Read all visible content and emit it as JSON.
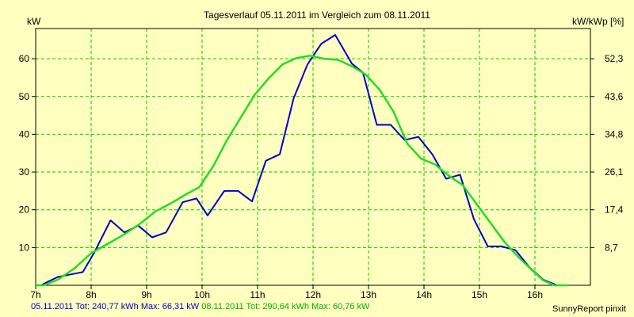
{
  "chart_data": {
    "type": "line",
    "title": "Tagesverlauf 05.11.2011 im Vergleich zum 08.11.2011",
    "ylabel": "kW",
    "ylabel_right": "kW/kWp [%]",
    "ylim": [
      0,
      68
    ],
    "y_ticks": [
      10,
      20,
      30,
      40,
      50,
      60
    ],
    "y_right_ticks": [
      "8,7",
      "17,4",
      "26,1",
      "34,8",
      "43,6",
      "52,3"
    ],
    "xlim": [
      7,
      17
    ],
    "x_ticks": [
      {
        "v": 7,
        "label": "7h"
      },
      {
        "v": 8,
        "label": "8h"
      },
      {
        "v": 9,
        "label": "9h"
      },
      {
        "v": 10,
        "label": "10h"
      },
      {
        "v": 11,
        "label": "11h"
      },
      {
        "v": 12,
        "label": "12h"
      },
      {
        "v": 13,
        "label": "13h"
      },
      {
        "v": 14,
        "label": "14h"
      },
      {
        "v": 15,
        "label": "15h"
      },
      {
        "v": 16,
        "label": "16h"
      }
    ],
    "grid": true,
    "series": [
      {
        "name": "05.11.2011",
        "color": "#0000cc",
        "points": [
          [
            7.0,
            0
          ],
          [
            7.1,
            0
          ],
          [
            7.2,
            0.8
          ],
          [
            7.4,
            2.2
          ],
          [
            7.6,
            2.8
          ],
          [
            7.85,
            3.5
          ],
          [
            8.05,
            8.5
          ],
          [
            8.35,
            17.2
          ],
          [
            8.6,
            14.0
          ],
          [
            8.85,
            15.8
          ],
          [
            9.1,
            12.7
          ],
          [
            9.35,
            14.0
          ],
          [
            9.65,
            22.0
          ],
          [
            9.9,
            23.0
          ],
          [
            10.1,
            18.5
          ],
          [
            10.4,
            25.0
          ],
          [
            10.65,
            25.0
          ],
          [
            10.9,
            22.2
          ],
          [
            11.15,
            33.0
          ],
          [
            11.4,
            34.7
          ],
          [
            11.65,
            49.5
          ],
          [
            11.9,
            58.5
          ],
          [
            12.15,
            64.0
          ],
          [
            12.4,
            66.3
          ],
          [
            12.7,
            58.7
          ],
          [
            12.9,
            56.3
          ],
          [
            13.15,
            42.5
          ],
          [
            13.4,
            42.5
          ],
          [
            13.65,
            38.5
          ],
          [
            13.9,
            39.3
          ],
          [
            14.15,
            34.7
          ],
          [
            14.4,
            28.2
          ],
          [
            14.65,
            29.3
          ],
          [
            14.9,
            17.5
          ],
          [
            15.15,
            10.3
          ],
          [
            15.4,
            10.3
          ],
          [
            15.65,
            9.3
          ],
          [
            15.9,
            4.8
          ],
          [
            16.15,
            1.5
          ],
          [
            16.4,
            0
          ],
          [
            16.6,
            0
          ]
        ]
      },
      {
        "name": "08.11.2011",
        "color": "#22dd22",
        "points": [
          [
            7.0,
            0
          ],
          [
            7.15,
            0
          ],
          [
            7.4,
            1.5
          ],
          [
            7.7,
            4.5
          ],
          [
            8.0,
            8.5
          ],
          [
            8.3,
            11.0
          ],
          [
            8.6,
            13.5
          ],
          [
            8.9,
            16.5
          ],
          [
            9.15,
            19.5
          ],
          [
            9.45,
            21.8
          ],
          [
            9.7,
            24.0
          ],
          [
            9.95,
            26.0
          ],
          [
            10.2,
            31.5
          ],
          [
            10.45,
            38.5
          ],
          [
            10.7,
            44.5
          ],
          [
            10.95,
            50.5
          ],
          [
            11.2,
            54.8
          ],
          [
            11.45,
            58.5
          ],
          [
            11.7,
            60.2
          ],
          [
            11.95,
            60.8
          ],
          [
            12.2,
            60.0
          ],
          [
            12.45,
            59.7
          ],
          [
            12.7,
            58.0
          ],
          [
            12.95,
            55.8
          ],
          [
            13.2,
            51.8
          ],
          [
            13.45,
            46.0
          ],
          [
            13.7,
            37.5
          ],
          [
            13.95,
            33.5
          ],
          [
            14.2,
            32.0
          ],
          [
            14.45,
            29.0
          ],
          [
            14.7,
            26.5
          ],
          [
            14.95,
            21.5
          ],
          [
            15.2,
            16.5
          ],
          [
            15.45,
            11.5
          ],
          [
            15.7,
            7.5
          ],
          [
            15.95,
            4.0
          ],
          [
            16.15,
            1.3
          ],
          [
            16.35,
            0
          ],
          [
            16.6,
            0
          ]
        ]
      }
    ]
  },
  "footer": {
    "s1_summary": "05.11.2011 Tot: 240,77 kWh Max: 66,31 kW",
    "s2_summary": "08.11.2011 Tot: 290,64 kWh Max: 60,76 kW",
    "credit": "SunnyReport pinxit"
  }
}
